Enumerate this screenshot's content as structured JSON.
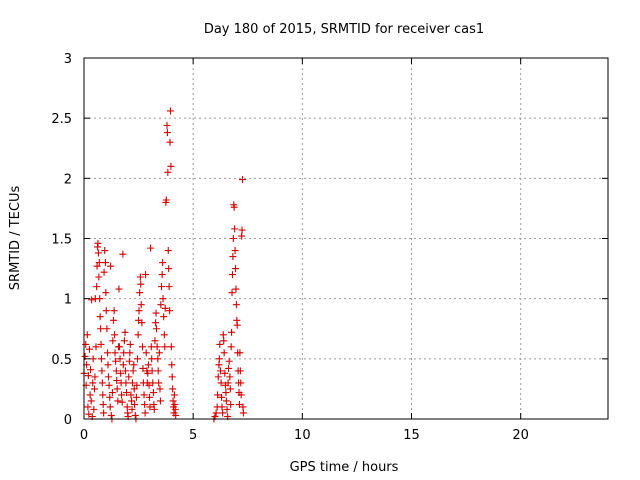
{
  "chart_data": {
    "type": "scatter",
    "title": "Day 180 of 2015, SRMTID for receiver cas1",
    "xlabel": "GPS time / hours",
    "ylabel": "SRMTID / TECUs",
    "xlim": [
      0,
      24
    ],
    "ylim": [
      0,
      3
    ],
    "xticks": [
      0,
      5,
      10,
      15,
      20
    ],
    "yticks": [
      0,
      0.5,
      1,
      1.5,
      2,
      2.5,
      3
    ],
    "xtick_labels": [
      "0",
      "5",
      "10",
      "15",
      "20"
    ],
    "ytick_labels": [
      "0",
      "0.5",
      "1",
      "1.5",
      "2",
      "2.5",
      "3"
    ],
    "grid": true,
    "marker": "+",
    "color": "#d40000",
    "series": [
      {
        "name": "SRMTID",
        "points": [
          [
            0.0,
            0.38
          ],
          [
            0.05,
            0.52
          ],
          [
            0.08,
            0.62
          ],
          [
            0.1,
            0.28
          ],
          [
            0.12,
            0.45
          ],
          [
            0.15,
            0.7
          ],
          [
            0.18,
            0.1
          ],
          [
            0.2,
            0.36
          ],
          [
            0.22,
            0.04
          ],
          [
            0.25,
            0.58
          ],
          [
            0.28,
            0.2
          ],
          [
            0.3,
            0.41
          ],
          [
            0.33,
            0.15
          ],
          [
            0.35,
            0.99
          ],
          [
            0.38,
            0.02
          ],
          [
            0.4,
            0.3
          ],
          [
            0.42,
            0.5
          ],
          [
            0.45,
            0.08
          ],
          [
            0.48,
            0.25
          ],
          [
            0.5,
            0.35
          ],
          [
            0.52,
            1.0
          ],
          [
            0.55,
            0.6
          ],
          [
            0.58,
            1.1
          ],
          [
            0.6,
            1.27
          ],
          [
            0.62,
            1.43
          ],
          [
            0.64,
            1.46
          ],
          [
            0.66,
            1.38
          ],
          [
            0.68,
            1.18
          ],
          [
            0.7,
            1.3
          ],
          [
            0.72,
            1.0
          ],
          [
            0.74,
            0.85
          ],
          [
            0.76,
            0.75
          ],
          [
            0.78,
            0.62
          ],
          [
            0.8,
            0.5
          ],
          [
            0.82,
            0.4
          ],
          [
            0.84,
            0.3
          ],
          [
            0.86,
            0.2
          ],
          [
            0.88,
            0.12
          ],
          [
            0.9,
            0.05
          ],
          [
            0.92,
            1.22
          ],
          [
            0.95,
            1.4
          ],
          [
            0.98,
            1.3
          ],
          [
            1.0,
            1.05
          ],
          [
            1.02,
            0.9
          ],
          [
            1.05,
            0.75
          ],
          [
            1.08,
            0.55
          ],
          [
            1.1,
            0.45
          ],
          [
            1.12,
            0.35
          ],
          [
            1.15,
            0.28
          ],
          [
            1.18,
            0.18
          ],
          [
            1.2,
            0.1
          ],
          [
            1.22,
            1.27
          ],
          [
            1.25,
            0.03
          ],
          [
            1.28,
            0.0
          ],
          [
            1.3,
            0.22
          ],
          [
            1.32,
            0.65
          ],
          [
            1.35,
            0.82
          ],
          [
            1.38,
            0.9
          ],
          [
            1.4,
            0.7
          ],
          [
            1.42,
            0.55
          ],
          [
            1.45,
            0.48
          ],
          [
            1.48,
            0.4
          ],
          [
            1.5,
            0.32
          ],
          [
            1.52,
            0.25
          ],
          [
            1.55,
            0.15
          ],
          [
            1.58,
            0.6
          ],
          [
            1.6,
            1.08
          ],
          [
            1.62,
            0.6
          ],
          [
            1.65,
            0.5
          ],
          [
            1.68,
            0.38
          ],
          [
            1.7,
            0.3
          ],
          [
            1.72,
            0.2
          ],
          [
            1.75,
            0.14
          ],
          [
            1.78,
            1.37
          ],
          [
            1.8,
            0.45
          ],
          [
            1.82,
            0.55
          ],
          [
            1.85,
            0.65
          ],
          [
            1.88,
            0.72
          ],
          [
            1.9,
            0.4
          ],
          [
            1.92,
            0.3
          ],
          [
            1.95,
            0.22
          ],
          [
            1.98,
            0.1
          ],
          [
            2.0,
            0.05
          ],
          [
            2.02,
            0.02
          ],
          [
            2.05,
            0.35
          ],
          [
            2.08,
            0.48
          ],
          [
            2.1,
            0.55
          ],
          [
            2.12,
            0.62
          ],
          [
            2.15,
            0.2
          ],
          [
            2.18,
            0.15
          ],
          [
            2.2,
            0.08
          ],
          [
            2.22,
            0.3
          ],
          [
            2.25,
            0.4
          ],
          [
            2.28,
            0.45
          ],
          [
            2.3,
            0.25
          ],
          [
            2.32,
            0.12
          ],
          [
            2.35,
            0.03
          ],
          [
            2.38,
            0.0
          ],
          [
            2.4,
            0.18
          ],
          [
            2.42,
            0.28
          ],
          [
            2.45,
            0.5
          ],
          [
            2.48,
            0.7
          ],
          [
            2.5,
            0.82
          ],
          [
            2.52,
            0.9
          ],
          [
            2.55,
            1.05
          ],
          [
            2.58,
            1.18
          ],
          [
            2.6,
            1.12
          ],
          [
            2.62,
            0.95
          ],
          [
            2.65,
            0.8
          ],
          [
            2.68,
            0.6
          ],
          [
            2.7,
            0.42
          ],
          [
            2.72,
            0.3
          ],
          [
            2.75,
            0.2
          ],
          [
            2.78,
            0.12
          ],
          [
            2.8,
            0.05
          ],
          [
            2.82,
            1.2
          ],
          [
            2.85,
            0.55
          ],
          [
            2.88,
            0.4
          ],
          [
            2.9,
            0.3
          ],
          [
            2.92,
            0.38
          ],
          [
            2.95,
            0.45
          ],
          [
            2.98,
            0.28
          ],
          [
            3.0,
            0.18
          ],
          [
            3.02,
            0.1
          ],
          [
            3.05,
            1.42
          ],
          [
            3.08,
            0.6
          ],
          [
            3.1,
            0.5
          ],
          [
            3.12,
            0.4
          ],
          [
            3.15,
            0.3
          ],
          [
            3.18,
            0.22
          ],
          [
            3.2,
            0.12
          ],
          [
            3.22,
            0.08
          ],
          [
            3.25,
            0.65
          ],
          [
            3.28,
            0.8
          ],
          [
            3.3,
            0.88
          ],
          [
            3.32,
            0.75
          ],
          [
            3.35,
            0.6
          ],
          [
            3.38,
            0.5
          ],
          [
            3.4,
            0.4
          ],
          [
            3.42,
            0.3
          ],
          [
            3.45,
            0.55
          ],
          [
            3.48,
            0.25
          ],
          [
            3.5,
            0.15
          ],
          [
            3.52,
            0.95
          ],
          [
            3.55,
            1.1
          ],
          [
            3.58,
            1.2
          ],
          [
            3.6,
            1.3
          ],
          [
            3.62,
            1.0
          ],
          [
            3.65,
            0.85
          ],
          [
            3.68,
            0.7
          ],
          [
            3.7,
            0.6
          ],
          [
            3.72,
            0.92
          ],
          [
            3.75,
            1.8
          ],
          [
            3.77,
            1.82
          ],
          [
            3.8,
            2.44
          ],
          [
            3.82,
            2.38
          ],
          [
            3.84,
            2.05
          ],
          [
            3.86,
            1.4
          ],
          [
            3.88,
            1.25
          ],
          [
            3.9,
            1.1
          ],
          [
            3.92,
            0.9
          ],
          [
            3.94,
            2.3
          ],
          [
            3.96,
            2.56
          ],
          [
            3.98,
            2.1
          ],
          [
            4.0,
            0.6
          ],
          [
            4.02,
            0.45
          ],
          [
            4.04,
            0.35
          ],
          [
            4.06,
            0.25
          ],
          [
            4.08,
            0.15
          ],
          [
            4.1,
            0.1
          ],
          [
            4.12,
            0.05
          ],
          [
            4.14,
            0.2
          ],
          [
            4.16,
            0.12
          ],
          [
            4.18,
            0.08
          ],
          [
            4.2,
            0.03
          ],
          [
            5.95,
            0.0
          ],
          [
            6.0,
            0.02
          ],
          [
            6.05,
            0.05
          ],
          [
            6.1,
            0.1
          ],
          [
            6.12,
            0.2
          ],
          [
            6.15,
            0.35
          ],
          [
            6.18,
            0.45
          ],
          [
            6.2,
            0.5
          ],
          [
            6.22,
            0.62
          ],
          [
            6.25,
            0.4
          ],
          [
            6.28,
            0.3
          ],
          [
            6.3,
            0.18
          ],
          [
            6.32,
            0.1
          ],
          [
            6.35,
            0.05
          ],
          [
            6.38,
            0.7
          ],
          [
            6.4,
            0.65
          ],
          [
            6.42,
            0.55
          ],
          [
            6.45,
            0.38
          ],
          [
            6.48,
            0.28
          ],
          [
            6.5,
            0.22
          ],
          [
            6.52,
            0.15
          ],
          [
            6.55,
            0.08
          ],
          [
            6.58,
            0.02
          ],
          [
            6.6,
            0.3
          ],
          [
            6.62,
            0.42
          ],
          [
            6.65,
            0.48
          ],
          [
            6.68,
            0.35
          ],
          [
            6.7,
            0.25
          ],
          [
            6.72,
            0.12
          ],
          [
            6.74,
            0.6
          ],
          [
            6.76,
            0.72
          ],
          [
            6.78,
            1.05
          ],
          [
            6.8,
            1.2
          ],
          [
            6.82,
            1.35
          ],
          [
            6.84,
            1.5
          ],
          [
            6.86,
            1.78
          ],
          [
            6.88,
            1.76
          ],
          [
            6.9,
            1.58
          ],
          [
            6.92,
            1.4
          ],
          [
            6.94,
            1.25
          ],
          [
            6.96,
            1.08
          ],
          [
            6.98,
            0.95
          ],
          [
            7.0,
            0.82
          ],
          [
            7.02,
            0.78
          ],
          [
            7.04,
            0.55
          ],
          [
            7.06,
            0.4
          ],
          [
            7.08,
            0.3
          ],
          [
            7.1,
            0.22
          ],
          [
            7.12,
            0.12
          ],
          [
            7.14,
            0.55
          ],
          [
            7.16,
            0.4
          ],
          [
            7.18,
            0.3
          ],
          [
            7.2,
            0.2
          ],
          [
            7.22,
            1.52
          ],
          [
            7.24,
            1.57
          ],
          [
            7.26,
            1.99
          ],
          [
            7.28,
            0.1
          ],
          [
            7.3,
            0.05
          ]
        ]
      }
    ]
  }
}
